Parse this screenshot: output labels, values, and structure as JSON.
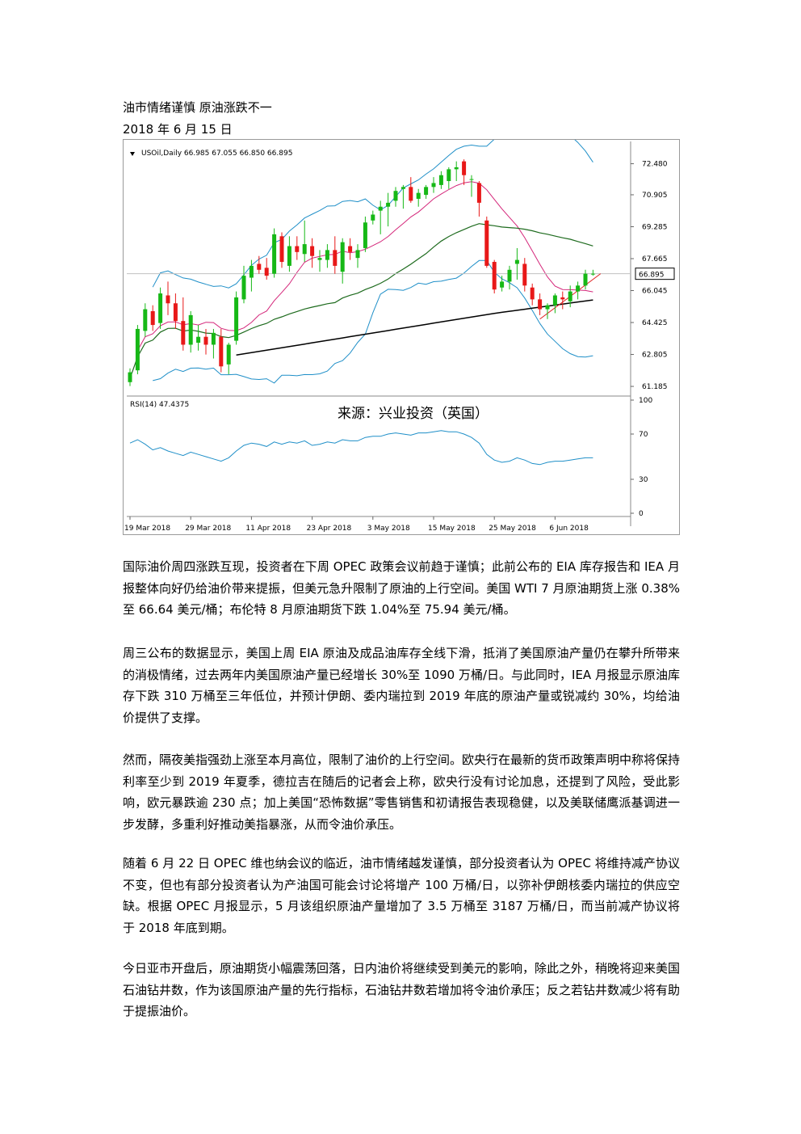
{
  "doc": {
    "title": "油市情绪谨慎  原油涨跌不一",
    "date": "2018 年 6 月 15 日",
    "paragraphs": [
      "国际油价周四涨跌互现，投资者在下周 OPEC 政策会议前趋于谨慎；此前公布的 EIA 库存报告和 IEA 月报整体向好仍给油价带来提振，但美元急升限制了原油的上行空间。美国 WTI 7 月原油期货上涨 0.38%至 66.64 美元/桶；布伦特 8 月原油期货下跌 1.04%至 75.94 美元/桶。",
      "周三公布的数据显示，美国上周 EIA 原油及成品油库存全线下滑，抵消了美国原油产量仍在攀升所带来的消极情绪，过去两年内美国原油产量已经增长 30%至 1090 万桶/日。与此同时，IEA 月报显示原油库存下跌 310 万桶至三年低位，并预计伊朗、委内瑞拉到 2019 年底的原油产量或锐减约 30%，均给油价提供了支撑。",
      "然而，隔夜美指强劲上涨至本月高位，限制了油价的上行空间。欧央行在最新的货币政策声明中称将保持利率至少到 2019 年夏季，德拉吉在随后的记者会上称，欧央行没有讨论加息，还提到了风险，受此影响，欧元暴跌逾 230 点；加上美国“恐怖数据”零售销售和初请报告表现稳健，以及美联储鹰派基调进一步发酵，多重利好推动美指暴涨，从而令油价承压。",
      "随着 6 月 22 日 OPEC 维也纳会议的临近，油市情绪越发谨慎，部分投资者认为 OPEC 将维持减产协议不变，但也有部分投资者认为产油国可能会讨论将增产 100 万桶/日，以弥补伊朗核委内瑞拉的供应空缺。根据 OPEC 月报显示，5 月该组织原油产量增加了 3.5 万桶至 3187 万桶/日，而当前减产协议将于 2018 年底到期。",
      "今日亚市开盘后，原油期货小幅震荡回落，日内油价将继续受到美元的影响，除此之外，稍晚将迎来美国石油钻井数，作为该国原油产量的先行指标，石油钻井数若增加将令油价承压；反之若钻井数减少将有助于提振油价。"
    ]
  },
  "chart_data": {
    "type": "candlestick",
    "header": "USOil,Daily  66.985 67.055 66.850 66.895",
    "current_price_label": "66.895",
    "watermark": "来源：兴业投资（英国）",
    "rsi_label": "RSI(14) 47.4375",
    "price_ticks": [
      "72.480",
      "70.905",
      "69.285",
      "67.665",
      "66.045",
      "64.425",
      "62.805",
      "61.185"
    ],
    "price_tick_values": [
      72.48,
      70.905,
      69.285,
      67.665,
      66.045,
      64.425,
      62.805,
      61.185
    ],
    "rsi_ticks": [
      "100",
      "70",
      "30",
      "0"
    ],
    "rsi_tick_values": [
      100,
      70,
      30,
      0
    ],
    "date_ticks": [
      "19 Mar 2018",
      "29 Mar 2018",
      "11 Apr 2018",
      "23 Apr 2018",
      "3 May 2018",
      "15 May 2018",
      "25 May 2018",
      "6 Jun 2018"
    ],
    "date_tick_bars": [
      0,
      8,
      16,
      24,
      32,
      40,
      48,
      56
    ],
    "ohlc": [
      [
        61.4,
        62.1,
        61.2,
        61.9
      ],
      [
        62.0,
        64.3,
        61.8,
        64.1
      ],
      [
        64.0,
        65.4,
        63.7,
        65.1
      ],
      [
        65.0,
        65.3,
        64.0,
        64.3
      ],
      [
        64.4,
        66.2,
        64.1,
        65.9
      ],
      [
        65.8,
        66.5,
        64.8,
        65.4
      ],
      [
        65.4,
        65.9,
        64.1,
        64.5
      ],
      [
        64.5,
        65.7,
        63.0,
        63.3
      ],
      [
        63.3,
        65.0,
        62.9,
        64.8
      ],
      [
        63.4,
        64.3,
        63.0,
        63.7
      ],
      [
        63.7,
        64.1,
        62.8,
        63.3
      ],
      [
        63.3,
        64.1,
        62.6,
        63.9
      ],
      [
        63.7,
        64.1,
        61.9,
        62.2
      ],
      [
        62.3,
        63.4,
        61.8,
        63.3
      ],
      [
        63.5,
        66.0,
        63.3,
        65.7
      ],
      [
        65.6,
        67.3,
        65.4,
        66.8
      ],
      [
        66.7,
        67.6,
        66.0,
        67.3
      ],
      [
        67.4,
        67.8,
        66.9,
        67.1
      ],
      [
        67.2,
        67.7,
        66.6,
        66.8
      ],
      [
        66.9,
        69.2,
        66.7,
        68.9
      ],
      [
        68.8,
        69.0,
        67.2,
        67.5
      ],
      [
        67.3,
        68.8,
        67.0,
        68.3
      ],
      [
        68.3,
        68.8,
        67.6,
        68.0
      ],
      [
        67.9,
        69.6,
        67.5,
        68.4
      ],
      [
        68.3,
        68.7,
        67.2,
        67.8
      ],
      [
        67.6,
        68.1,
        67.0,
        67.7
      ],
      [
        67.6,
        68.4,
        67.2,
        68.1
      ],
      [
        68.1,
        68.8,
        66.9,
        67.3
      ],
      [
        67.0,
        68.7,
        66.4,
        68.5
      ],
      [
        68.3,
        68.7,
        67.6,
        68.0
      ],
      [
        67.7,
        68.4,
        67.2,
        68.1
      ],
      [
        68.2,
        69.8,
        68.0,
        69.5
      ],
      [
        69.6,
        70.1,
        69.4,
        69.9
      ],
      [
        70.1,
        70.6,
        68.9,
        70.3
      ],
      [
        70.3,
        71.0,
        69.3,
        70.5
      ],
      [
        70.6,
        71.3,
        70.3,
        71.1
      ],
      [
        71.2,
        71.4,
        70.2,
        71.3
      ],
      [
        71.3,
        71.8,
        70.5,
        70.6
      ],
      [
        70.7,
        71.2,
        70.3,
        71.0
      ],
      [
        70.9,
        71.4,
        70.7,
        71.3
      ],
      [
        71.3,
        71.8,
        71.0,
        71.5
      ],
      [
        71.4,
        72.1,
        71.2,
        71.9
      ],
      [
        71.6,
        72.3,
        71.2,
        72.2
      ],
      [
        72.2,
        72.6,
        71.6,
        72.3
      ],
      [
        72.6,
        72.7,
        71.4,
        71.9
      ],
      [
        71.7,
        71.9,
        70.8,
        71.7
      ],
      [
        71.5,
        71.6,
        69.8,
        70.5
      ],
      [
        69.6,
        69.8,
        67.2,
        67.3
      ],
      [
        67.5,
        67.6,
        65.9,
        66.1
      ],
      [
        66.2,
        66.8,
        66.0,
        66.5
      ],
      [
        66.5,
        67.3,
        66.1,
        67.1
      ],
      [
        67.4,
        68.2,
        66.6,
        67.6
      ],
      [
        67.4,
        67.7,
        66.0,
        66.3
      ],
      [
        66.2,
        66.4,
        65.3,
        65.6
      ],
      [
        65.6,
        65.9,
        64.8,
        65.1
      ],
      [
        65.1,
        65.4,
        64.6,
        65.3
      ],
      [
        65.3,
        65.9,
        64.9,
        65.8
      ],
      [
        65.7,
        66.0,
        65.1,
        65.6
      ],
      [
        65.5,
        66.3,
        65.2,
        66.0
      ],
      [
        66.0,
        66.5,
        65.6,
        66.3
      ],
      [
        66.3,
        67.1,
        66.1,
        66.9
      ],
      [
        66.9,
        67.1,
        66.8,
        66.9
      ]
    ],
    "rsi_values": [
      62,
      65,
      61,
      56,
      58,
      55,
      53,
      51,
      54,
      52,
      50,
      48,
      46,
      49,
      55,
      60,
      62,
      61,
      59,
      63,
      61,
      63,
      62,
      64,
      60,
      61,
      63,
      62,
      65,
      64,
      64,
      67,
      68,
      68,
      70,
      71,
      70,
      69,
      71,
      71,
      72,
      73,
      72,
      72,
      70,
      67,
      62,
      52,
      47,
      45,
      46,
      49,
      47,
      44,
      43,
      45,
      46,
      46,
      47,
      48,
      49,
      49
    ]
  }
}
